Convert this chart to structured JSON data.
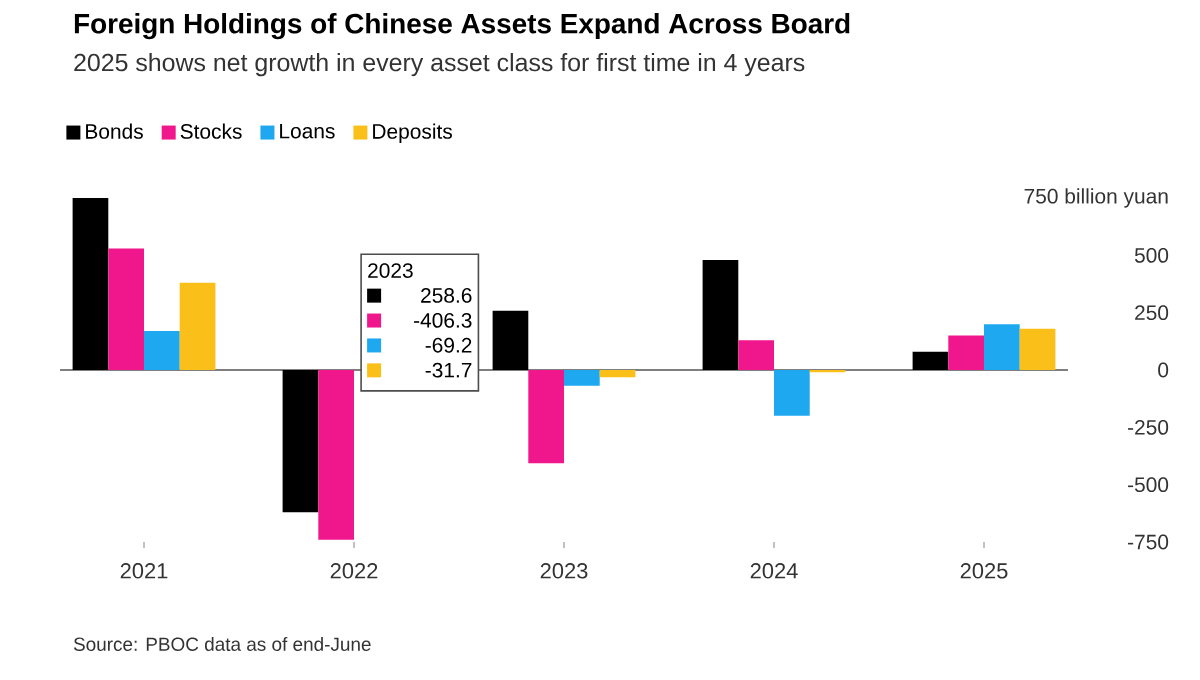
{
  "chart_data": {
    "type": "bar",
    "title": "Foreign Holdings of Chinese Assets Expand Across Board",
    "subtitle": "2025 shows net growth in every asset class for first time in 4 years",
    "categories": [
      "2021",
      "2022",
      "2023",
      "2024",
      "2025"
    ],
    "series": [
      {
        "name": "Bonds",
        "color": "#000000",
        "values": [
          750,
          -620,
          258.6,
          480,
          80
        ]
      },
      {
        "name": "Stocks",
        "color": "#f0168c",
        "values": [
          530,
          -740,
          -406.3,
          130,
          150
        ]
      },
      {
        "name": "Loans",
        "color": "#1ea8f0",
        "values": [
          170,
          null,
          -69.2,
          -200,
          200
        ]
      },
      {
        "name": "Deposits",
        "color": "#fbbf1a",
        "values": [
          380,
          null,
          -31.7,
          -10,
          180
        ]
      }
    ],
    "ylim": [
      -750,
      750
    ],
    "yticks": [
      {
        "value": 750,
        "label": "750 billion yuan"
      },
      500,
      250,
      0,
      -250,
      -500,
      -750
    ],
    "ref_lines": [
      {
        "axis": "y",
        "value": 0,
        "color": "#000000"
      }
    ],
    "legend": "top left",
    "annotations": [
      "2023",
      "258.6",
      "-406.3",
      "-69.2",
      "-31.7",
      "Source: PBOC data as of end-June"
    ]
  }
}
